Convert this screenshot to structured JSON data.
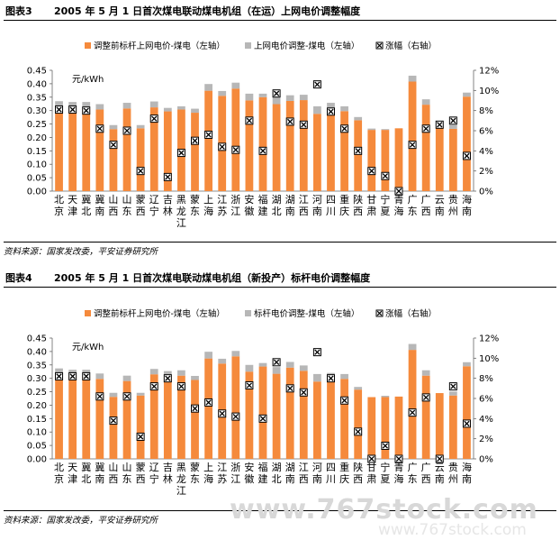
{
  "provinces": [
    "北京",
    "天津",
    "冀北",
    "冀南",
    "山西",
    "山东",
    "蒙西",
    "辽宁",
    "吉林",
    "黑龙江",
    "蒙东",
    "上海",
    "江苏",
    "浙江",
    "安徽",
    "福建",
    "湖北",
    "湖南",
    "江西",
    "河南",
    "四川",
    "重庆",
    "陕西",
    "甘肃",
    "宁夏",
    "青海",
    "广东",
    "广西",
    "云南",
    "贵州",
    "海南"
  ],
  "colors": {
    "orange": "#F58A3C",
    "gray": "#B7B7B7",
    "marker": "#000000"
  },
  "watermark": "www.767stock.com",
  "watermark2": "www.767stock.com",
  "chart_data": [
    {
      "type": "bar",
      "fig_label": "图表3",
      "title": "2005 年 5 月 1 日首次煤电联动煤电机组（在运）上网电价调整幅度",
      "unit_label": "元/kWh",
      "legend": [
        "调整前标杆上网电价-煤电（左轴）",
        "上网电价调整-煤电（左轴）",
        "涨幅（右轴）"
      ],
      "source": "资料来源：国家发改委，平安证券研究所",
      "ylim": [
        0,
        0.45
      ],
      "ystep": 0.05,
      "y2lim": [
        0,
        12
      ],
      "y2step": 2,
      "y2_suffix": "%",
      "stacked": true,
      "series": [
        {
          "name": "调整前标杆上网电价-煤电（左轴）",
          "values": [
            0.31,
            0.307,
            0.307,
            0.304,
            0.231,
            0.308,
            0.234,
            0.312,
            0.297,
            0.304,
            0.292,
            0.374,
            0.355,
            0.382,
            0.338,
            0.35,
            0.324,
            0.336,
            0.339,
            0.288,
            0.307,
            0.298,
            0.264,
            0.228,
            0.228,
            0.234,
            0.408,
            0.322,
            0.238,
            0.232,
            0.352
          ]
        },
        {
          "name": "上网电价调整-煤电（左轴）",
          "values": [
            0.025,
            0.025,
            0.025,
            0.02,
            0.015,
            0.021,
            0.012,
            0.022,
            0.013,
            0.012,
            0.015,
            0.025,
            0.018,
            0.022,
            0.025,
            0.013,
            0.025,
            0.021,
            0.02,
            0.028,
            0.022,
            0.018,
            0.012,
            0.005,
            0.003,
            0.0,
            0.022,
            0.02,
            0.01,
            0.014,
            0.015
          ]
        },
        {
          "name": "涨幅（右轴）",
          "values": [
            8.1,
            8.1,
            8.0,
            6.2,
            4.6,
            6.0,
            2.0,
            7.2,
            1.4,
            3.8,
            5.0,
            5.6,
            4.4,
            4.1,
            7.0,
            4.0,
            9.7,
            6.9,
            6.6,
            10.6,
            7.9,
            6.2,
            4.0,
            2.0,
            1.5,
            0.0,
            4.6,
            6.2,
            6.6,
            7.0,
            3.5
          ]
        }
      ]
    },
    {
      "type": "bar",
      "fig_label": "图表4",
      "title": "2005 年 5 月 1 日首次煤电联动煤电机组（新投产）标杆电价调整幅度",
      "unit_label": "元/kWh",
      "legend": [
        "调整前标杆上网电价-煤电（左轴）",
        "标杆电价调整-煤电（左轴）",
        "涨幅（右轴）"
      ],
      "source": "资料来源：国家发改委，平安证券研究所",
      "ylim": [
        0,
        0.45
      ],
      "ystep": 0.05,
      "y2lim": [
        0,
        12
      ],
      "y2step": 2,
      "y2_suffix": "%",
      "stacked": true,
      "series": [
        {
          "name": "调整前标杆上网电价-煤电（左轴）",
          "values": [
            0.312,
            0.307,
            0.307,
            0.298,
            0.231,
            0.29,
            0.236,
            0.315,
            0.307,
            0.31,
            0.294,
            0.374,
            0.355,
            0.382,
            0.325,
            0.344,
            0.317,
            0.34,
            0.328,
            0.288,
            0.3,
            0.298,
            0.258,
            0.23,
            0.23,
            0.232,
            0.406,
            0.31,
            0.245,
            0.236,
            0.345
          ]
        },
        {
          "name": "标杆电价调整-煤电（左轴）",
          "values": [
            0.025,
            0.025,
            0.025,
            0.02,
            0.015,
            0.02,
            0.01,
            0.02,
            0.02,
            0.02,
            0.015,
            0.025,
            0.018,
            0.02,
            0.025,
            0.013,
            0.025,
            0.021,
            0.02,
            0.028,
            0.02,
            0.018,
            0.01,
            0.0,
            0.005,
            0.0,
            0.022,
            0.02,
            0.0,
            0.015,
            0.015
          ]
        },
        {
          "name": "涨幅（右轴）",
          "values": [
            8.2,
            8.2,
            8.2,
            6.2,
            3.8,
            6.2,
            2.2,
            7.2,
            8.0,
            7.2,
            5.0,
            5.6,
            4.5,
            4.2,
            7.3,
            4.0,
            9.6,
            7.0,
            6.6,
            10.6,
            8.0,
            5.8,
            2.7,
            0.0,
            1.3,
            0.0,
            4.6,
            6.1,
            0.0,
            7.2,
            3.5
          ]
        }
      ]
    }
  ]
}
